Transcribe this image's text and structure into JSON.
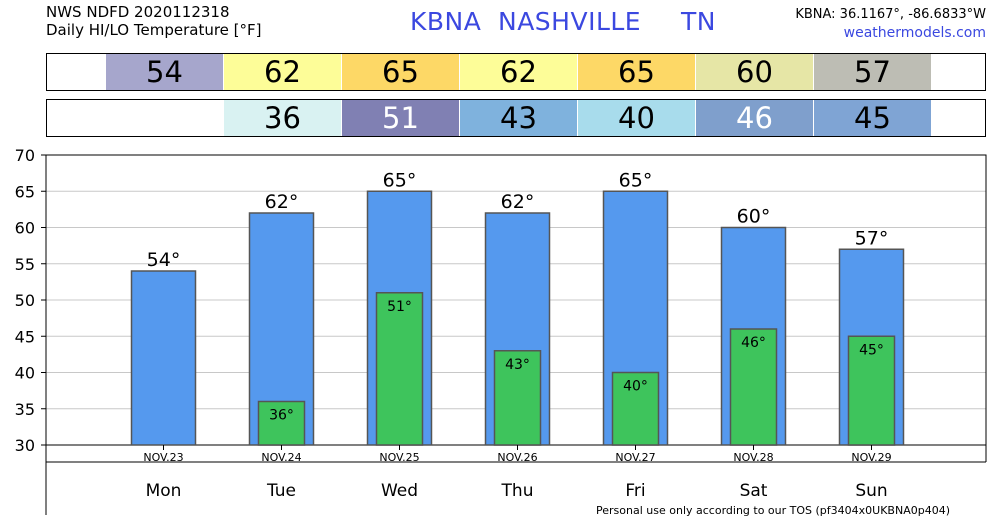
{
  "header": {
    "line1": "NWS NDFD 2020112318",
    "line2": "Daily HI/LO Temperature [°F]",
    "station_id": "KBNA",
    "station_name": "NASHVILLE",
    "state": "TN",
    "coords": "KBNA: 36.1167°, -86.6833°W",
    "site": "weathermodels.com"
  },
  "hi_strip": [
    {
      "value": "54",
      "color": "#a6a6cc"
    },
    {
      "value": "62",
      "color": "#fdfd98"
    },
    {
      "value": "65",
      "color": "#fdd866"
    },
    {
      "value": "62",
      "color": "#fdfd98"
    },
    {
      "value": "65",
      "color": "#fdd866"
    },
    {
      "value": "60",
      "color": "#e6e6a6"
    },
    {
      "value": "57",
      "color": "#bdbdb4"
    }
  ],
  "lo_strip": [
    {
      "value": "",
      "color": "#ffffff"
    },
    {
      "value": "36",
      "color": "#d9f2f2",
      "text_color": "#000000"
    },
    {
      "value": "51",
      "color": "#8080b3",
      "text_color": "#ffffff"
    },
    {
      "value": "43",
      "color": "#7fb2dd",
      "text_color": "#000000"
    },
    {
      "value": "40",
      "color": "#a8dcec",
      "text_color": "#000000"
    },
    {
      "value": "46",
      "color": "#7f9fcc",
      "text_color": "#ffffff"
    },
    {
      "value": "45",
      "color": "#7fa4d4",
      "text_color": "#000000"
    }
  ],
  "chart_data": {
    "type": "bar",
    "categories": [
      "Mon",
      "Tue",
      "Wed",
      "Thu",
      "Fri",
      "Sat",
      "Sun"
    ],
    "dates": [
      "NOV.23",
      "NOV.24",
      "NOV.25",
      "NOV.26",
      "NOV.27",
      "NOV.28",
      "NOV.29"
    ],
    "series": [
      {
        "values": [
          54,
          62,
          65,
          62,
          65,
          60,
          57
        ],
        "color": "#5599ee"
      },
      {
        "values": [
          null,
          36,
          51,
          43,
          40,
          46,
          45
        ],
        "color": "#3ec45c"
      }
    ],
    "ylim": [
      30,
      70
    ],
    "yticks": [
      30,
      35,
      40,
      45,
      50,
      55,
      60,
      65,
      70
    ],
    "grid": true,
    "degree_symbol": "°"
  },
  "footer": "Personal use only according to our TOS (pf3404x0UKBNA0p404)"
}
